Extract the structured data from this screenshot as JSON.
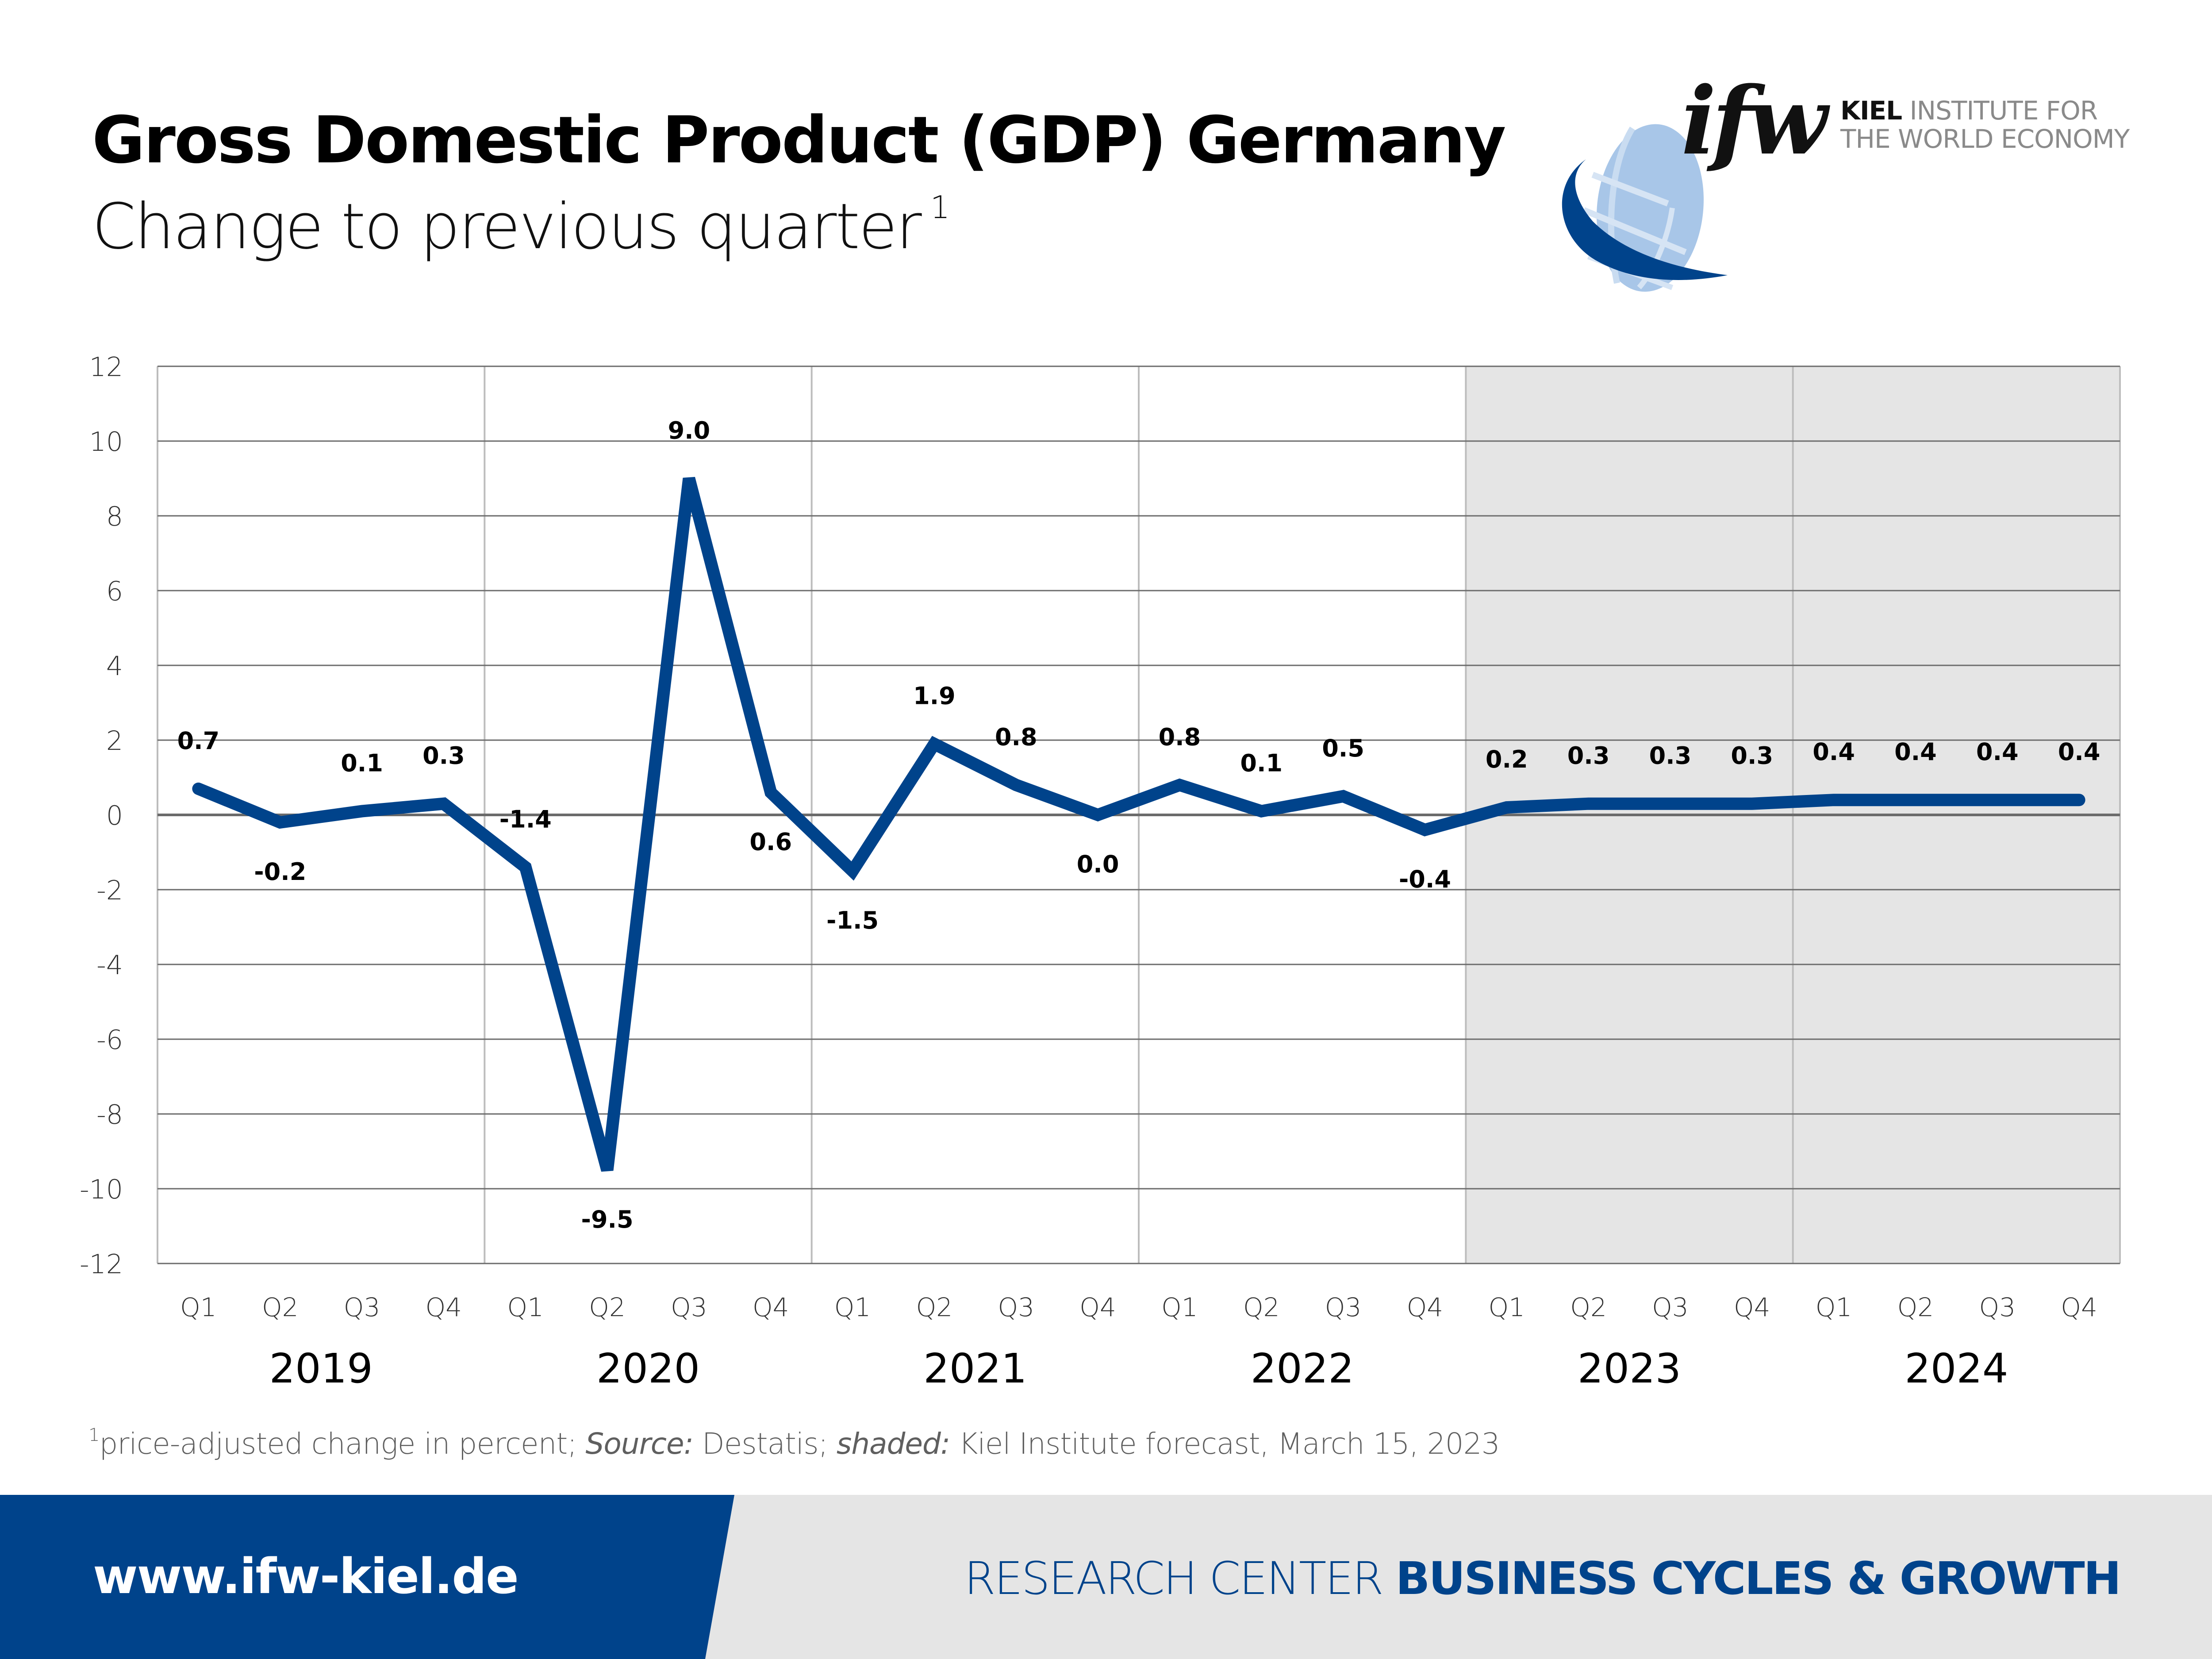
{
  "header": {
    "title": "Gross Domestic Product (GDP) Germany",
    "subtitle": "Change to previous quarter",
    "subtitle_footnote_marker": "1"
  },
  "logo": {
    "mark": "ifw",
    "name_bold": "KIEL",
    "name_line1_rest": "INSTITUTE FOR",
    "name_line2": "THE WORLD ECONOMY",
    "icon": "globe-logo-icon"
  },
  "colors": {
    "line": "#00438b",
    "forecast_shading": "#e5e5e5",
    "grid_horizontal": "#6b6b6b",
    "grid_vertical": "#bdbdbd",
    "footer_blue": "#00438b",
    "footer_grey": "#e5e5e5"
  },
  "chart_data": {
    "type": "line",
    "title": "Gross Domestic Product (GDP) Germany",
    "subtitle": "Change to previous quarter",
    "xlabel": "",
    "ylabel": "",
    "ylim": [
      -12,
      12
    ],
    "yticks": [
      12,
      10,
      8,
      6,
      4,
      2,
      0,
      -2,
      -4,
      -6,
      -8,
      -10,
      -12
    ],
    "grid": true,
    "legend": "none",
    "years": [
      "2019",
      "2020",
      "2021",
      "2022",
      "2023",
      "2024"
    ],
    "quarters": [
      "Q1",
      "Q2",
      "Q3",
      "Q4"
    ],
    "categories": [
      "2019 Q1",
      "2019 Q2",
      "2019 Q3",
      "2019 Q4",
      "2020 Q1",
      "2020 Q2",
      "2020 Q3",
      "2020 Q4",
      "2021 Q1",
      "2021 Q2",
      "2021 Q3",
      "2021 Q4",
      "2022 Q1",
      "2022 Q2",
      "2022 Q3",
      "2022 Q4",
      "2023 Q1",
      "2023 Q2",
      "2023 Q3",
      "2023 Q4",
      "2024 Q1",
      "2024 Q2",
      "2024 Q3",
      "2024 Q4"
    ],
    "series": [
      {
        "name": "GDP change to previous quarter (%)",
        "values": [
          0.7,
          -0.2,
          0.1,
          0.3,
          -1.4,
          -9.5,
          9.0,
          0.6,
          -1.5,
          1.9,
          0.8,
          0.0,
          0.8,
          0.1,
          0.5,
          -0.4,
          0.2,
          0.3,
          0.3,
          0.3,
          0.4,
          0.4,
          0.4,
          0.4
        ],
        "labels": [
          "0.7",
          "-0.2",
          "0.1",
          "0.3",
          "-1.4",
          "-9.5",
          "9.0",
          "0.6",
          "-1.5",
          "1.9",
          "0.8",
          "0.0",
          "0.8",
          "0.1",
          "0.5",
          "-0.4",
          "0.2",
          "0.3",
          "0.3",
          "0.3",
          "0.4",
          "0.4",
          "0.4",
          "0.4"
        ],
        "label_position": [
          "above",
          "below",
          "above",
          "above",
          "above",
          "below",
          "above",
          "below",
          "below",
          "above",
          "above",
          "below",
          "above",
          "above",
          "above",
          "below",
          "above",
          "above",
          "above",
          "above",
          "above",
          "above",
          "above",
          "above"
        ]
      }
    ],
    "shaded_region": {
      "from": "2023 Q1",
      "to": "2024 Q4",
      "meaning": "Kiel Institute forecast"
    }
  },
  "footnote": {
    "marker": "1",
    "text_part1": "price-adjusted change in percent; ",
    "source_label": "Source:",
    "source_value": " Destatis; ",
    "shaded_label": "shaded:",
    "shaded_value": " Kiel Institute forecast, March 15, 2023"
  },
  "footer": {
    "url": "www.ifw-kiel.de",
    "research_center_label": "RESEARCH CENTER",
    "research_center_name": "BUSINESS CYCLES & GROWTH"
  }
}
